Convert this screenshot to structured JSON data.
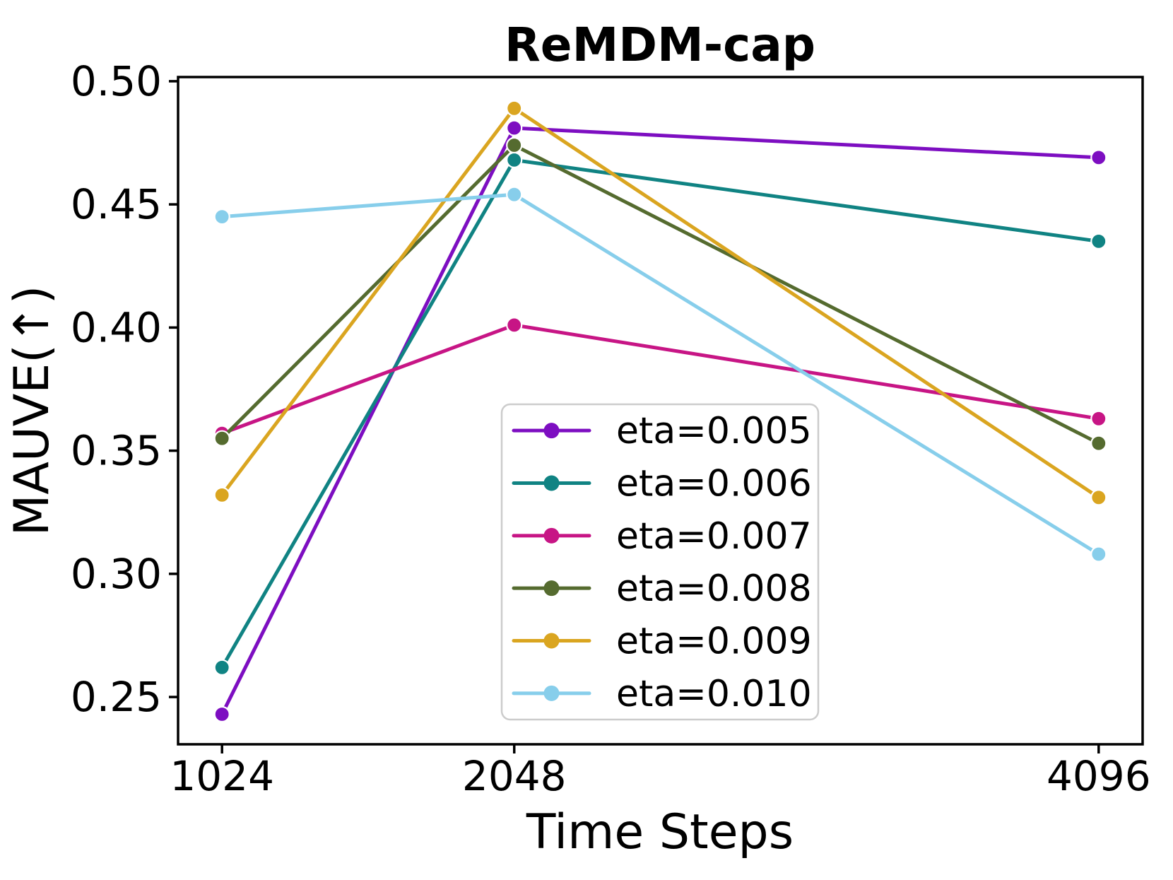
{
  "figure": {
    "background": "#ffffff"
  },
  "chart_data": {
    "type": "line",
    "title": "ReMDM-cap",
    "xlabel": "Time Steps",
    "ylabel": "MAUVE(↑)",
    "x": [
      1024,
      2048,
      4096
    ],
    "x_tick_labels": [
      "1024",
      "2048",
      "4096"
    ],
    "y_ticks": [
      0.25,
      0.3,
      0.35,
      0.4,
      0.45,
      0.5
    ],
    "y_tick_labels": [
      "0.25",
      "0.30",
      "0.35",
      "0.40",
      "0.45",
      "0.50"
    ],
    "xlim": [
      870,
      4250
    ],
    "ylim": [
      0.2308,
      0.5017
    ],
    "grid": false,
    "legend_position": "inside lower-center-right",
    "series": [
      {
        "name": "eta=0.005",
        "color": "#7D0EC1",
        "values": [
          0.243,
          0.481,
          0.469
        ]
      },
      {
        "name": "eta=0.006",
        "color": "#108383",
        "values": [
          0.262,
          0.468,
          0.435
        ]
      },
      {
        "name": "eta=0.007",
        "color": "#C71585",
        "values": [
          0.357,
          0.401,
          0.363
        ]
      },
      {
        "name": "eta=0.008",
        "color": "#556B2F",
        "values": [
          0.355,
          0.474,
          0.353
        ]
      },
      {
        "name": "eta=0.009",
        "color": "#DAA520",
        "values": [
          0.332,
          0.489,
          0.331
        ]
      },
      {
        "name": "eta=0.010",
        "color": "#87CEEB",
        "values": [
          0.445,
          0.454,
          0.308
        ]
      }
    ],
    "marker": "circle",
    "axis_color": "#000000",
    "legend_border_color": "#cccccc",
    "legend_background": "#ffffff"
  }
}
